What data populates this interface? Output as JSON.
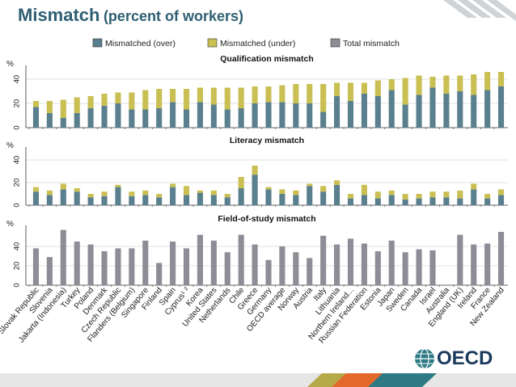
{
  "page": {
    "title_main": "Mismatch",
    "title_sub": "(percent of workers)",
    "logo_text": "OECD"
  },
  "colors": {
    "over": "#5a7f8e",
    "under": "#c9bf52",
    "total": "#8c8d96",
    "title": "#2f5f73",
    "footer_orange": "#e3692a",
    "footer_teal": "#2e7b86",
    "footer_olive": "#b6a94a"
  },
  "chart_data": [
    {
      "type": "bar",
      "stacked": true,
      "title": "Qualification mismatch",
      "ylabel": "%",
      "ylim": [
        0,
        50
      ],
      "yticks": [
        0,
        20,
        40
      ],
      "grid": true,
      "legend": [
        "Mismatched (over)",
        "Mismatched (under)",
        "Total mismatch"
      ],
      "categories": [
        "Slovak Republic",
        "Slovenia",
        "Jakarta (Indonesia)",
        "Turkey",
        "Poland",
        "Denmark",
        "Czech Republic",
        "Flanders (Belgium)",
        "Singapore",
        "Finland",
        "Spain",
        "Cyprus¹ ²",
        "Korea",
        "United States",
        "Netherlands",
        "Chile",
        "Greece",
        "Germany",
        "OECD average",
        "Norway",
        "Austria",
        "Italy",
        "Lithuania",
        "Northern Ireland...",
        "Russian Federation",
        "Estonia",
        "Japan",
        "Sweden",
        "Canada",
        "Israel",
        "Australia",
        "England (UK)",
        "Ireland",
        "France",
        "New Zealand"
      ],
      "series": [
        {
          "name": "Mismatched (over)",
          "values": [
            17,
            12,
            8,
            12,
            16,
            18,
            20,
            15,
            15,
            16,
            21,
            15,
            21,
            19,
            15,
            16,
            20,
            21,
            21,
            20,
            20,
            13,
            26,
            22,
            28,
            26,
            31,
            19,
            27,
            33,
            28,
            30,
            27,
            31,
            34
          ]
        },
        {
          "name": "Mismatched (under)",
          "values": [
            5,
            10,
            15,
            13,
            10,
            10,
            9,
            14,
            16,
            16,
            11,
            17,
            12,
            14,
            18,
            17,
            14,
            13,
            14,
            16,
            16,
            23,
            11,
            15,
            9,
            13,
            9,
            22,
            16,
            9,
            15,
            13,
            17,
            15,
            12
          ]
        }
      ]
    },
    {
      "type": "bar",
      "stacked": true,
      "title": "Literacy mismatch",
      "ylabel": "%",
      "ylim": [
        0,
        50
      ],
      "yticks": [
        0,
        20,
        40
      ],
      "grid": true,
      "categories": [
        "Slovak Republic",
        "Slovenia",
        "Jakarta (Indonesia)",
        "Turkey",
        "Poland",
        "Denmark",
        "Czech Republic",
        "Flanders (Belgium)",
        "Singapore",
        "Finland",
        "Spain",
        "Cyprus¹ ²",
        "Korea",
        "United States",
        "Netherlands",
        "Chile",
        "Greece",
        "Germany",
        "OECD average",
        "Norway",
        "Austria",
        "Italy",
        "Lithuania",
        "Northern Ireland...",
        "Russian Federation",
        "Estonia",
        "Japan",
        "Sweden",
        "Canada",
        "Israel",
        "Australia",
        "England (UK)",
        "Ireland",
        "France",
        "New Zealand"
      ],
      "series": [
        {
          "name": "Mismatched (over)",
          "values": [
            12,
            9,
            14,
            12,
            7,
            8,
            16,
            8,
            9,
            7,
            16,
            9,
            11,
            9,
            7,
            15,
            27,
            14,
            10,
            9,
            17,
            12,
            18,
            6,
            9,
            6,
            9,
            5,
            6,
            7,
            7,
            6,
            14,
            6,
            9
          ]
        },
        {
          "name": "Mismatched (under)",
          "values": [
            4,
            4,
            5,
            3,
            3,
            4,
            2,
            4,
            4,
            3,
            3,
            8,
            2,
            4,
            3,
            10,
            8,
            2,
            4,
            4,
            2,
            5,
            4,
            4,
            9,
            6,
            4,
            5,
            4,
            5,
            5,
            7,
            5,
            4,
            5
          ]
        }
      ]
    },
    {
      "type": "bar",
      "title": "Field-of-study mismatch",
      "ylabel": "%",
      "ylim": [
        0,
        60
      ],
      "yticks": [
        0,
        20,
        40
      ],
      "grid": true,
      "categories": [
        "Slovak Republic",
        "Slovenia",
        "Jakarta (Indonesia)",
        "Turkey",
        "Poland",
        "Denmark",
        "Czech Republic",
        "Flanders (Belgium)",
        "Singapore",
        "Finland",
        "Spain",
        "Cyprus¹ ²",
        "Korea",
        "United States",
        "Netherlands",
        "Chile",
        "Greece",
        "Germany",
        "OECD average",
        "Norway",
        "Austria",
        "Italy",
        "Lithuania",
        "Northern Ireland...",
        "Russian Federation",
        "Estonia",
        "Japan",
        "Sweden",
        "Canada",
        "Israel",
        "Australia",
        "England (UK)",
        "Ireland",
        "France",
        "New Zealand"
      ],
      "series": [
        {
          "name": "Total mismatch",
          "values": [
            38,
            29,
            57,
            45,
            42,
            35,
            38,
            38,
            46,
            23,
            45,
            38,
            52,
            46,
            34,
            52,
            42,
            26,
            40,
            34,
            28,
            51,
            42,
            48,
            43,
            35,
            46,
            34,
            37,
            36,
            null,
            52,
            42,
            43,
            55
          ]
        }
      ]
    }
  ]
}
